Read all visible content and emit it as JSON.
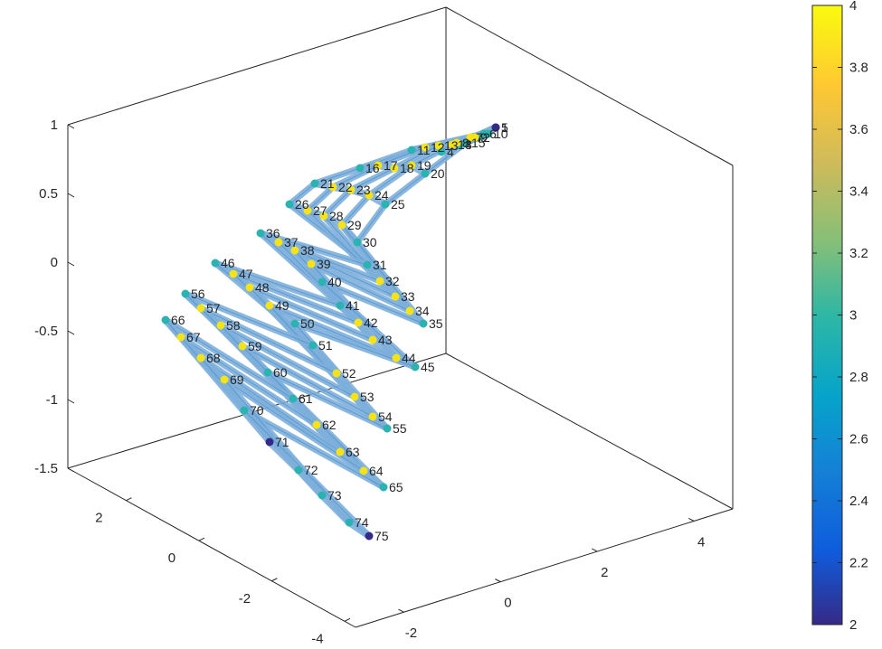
{
  "chart_data": {
    "type": "3d-graph",
    "axes": {
      "x": {
        "ticks": [
          -2,
          0,
          2,
          4
        ],
        "labels": [
          "-2",
          "0",
          "2",
          "4"
        ]
      },
      "y": {
        "ticks": [
          -4,
          -2,
          0,
          2
        ],
        "labels": [
          "-4",
          "-2",
          "0",
          "2"
        ]
      },
      "z": {
        "ticks": [
          -1.5,
          -1,
          -0.5,
          0,
          0.5,
          1
        ],
        "labels": [
          "-1.5",
          "-1",
          "-0.5",
          "0",
          "0.5",
          "1"
        ]
      }
    },
    "colorbar": {
      "min": 2,
      "max": 4,
      "ticks": [
        2,
        2.2,
        2.4,
        2.6,
        2.8,
        3,
        3.2,
        3.4,
        3.6,
        3.8,
        4
      ],
      "labels": [
        "2",
        "2.2",
        "2.4",
        "2.6",
        "2.8",
        "3",
        "3.2",
        "3.4",
        "3.6",
        "3.8",
        "4"
      ]
    },
    "grid": {
      "rows": 15,
      "cols": 5
    },
    "node_degree_note": "corner nodes = 2, edge nodes = 3, interior nodes = 4",
    "node_labels": [
      "1",
      "2",
      "3",
      "4",
      "5",
      "6",
      "7",
      "8",
      "9",
      "10",
      "11",
      "12",
      "13",
      "14",
      "15",
      "16",
      "17",
      "18",
      "19",
      "20",
      "21",
      "22",
      "23",
      "24",
      "25",
      "26",
      "27",
      "28",
      "29",
      "30",
      "31",
      "32",
      "33",
      "34",
      "35",
      "36",
      "37",
      "38",
      "39",
      "40",
      "41",
      "42",
      "43",
      "44",
      "45",
      "46",
      "47",
      "48",
      "49",
      "50",
      "51",
      "52",
      "53",
      "54",
      "55",
      "56",
      "57",
      "58",
      "59",
      "60",
      "61",
      "62",
      "63",
      "64",
      "65",
      "66",
      "67",
      "68",
      "69",
      "70",
      "71",
      "72",
      "73",
      "74",
      "75"
    ],
    "edge_color": "#7fb0dc",
    "box_color": "#262626"
  }
}
